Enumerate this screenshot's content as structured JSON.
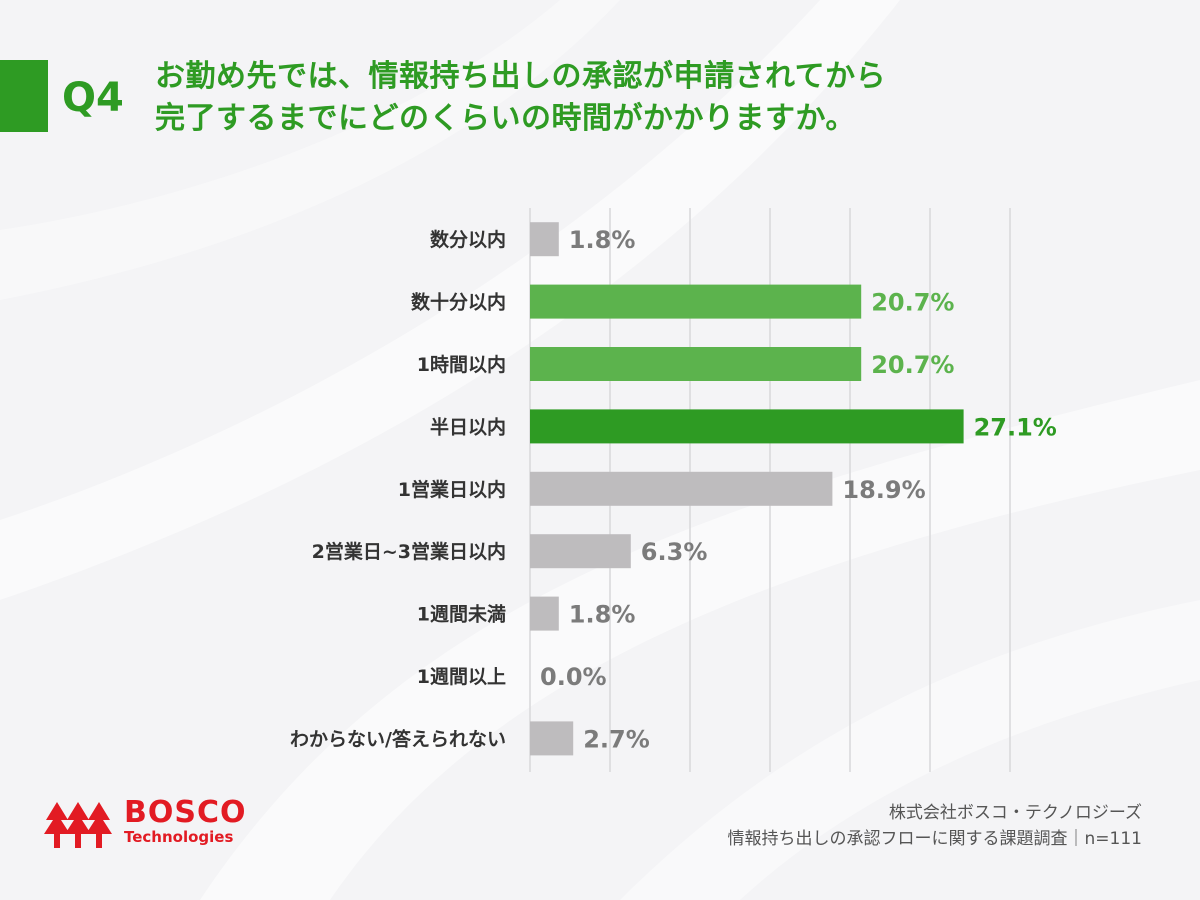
{
  "header": {
    "question_label": "Q4",
    "title_lines": [
      "お勤め先では、情報持ち出しの承認が申請されてから",
      "完了するまでにどのくらいの時間がかかりますか。"
    ]
  },
  "chart_data": {
    "type": "bar",
    "orientation": "horizontal",
    "categories": [
      "数分以内",
      "数十分以内",
      "1時間以内",
      "半日以内",
      "1営業日以内",
      "2営業日~3営業日以内",
      "1週間未満",
      "1週間以上",
      "わからない/答えられない"
    ],
    "values": [
      1.8,
      20.7,
      20.7,
      27.1,
      18.9,
      6.3,
      1.8,
      0.0,
      2.7
    ],
    "value_labels": [
      "1.8%",
      "20.7%",
      "20.7%",
      "27.1%",
      "18.9%",
      "6.3%",
      "1.8%",
      "0.0%",
      "2.7%"
    ],
    "value_unit": "%",
    "xlim": [
      0,
      30
    ],
    "grid": true,
    "colors": {
      "highlight": "#2e9b23",
      "accent": "#5cb34d",
      "neutral": "#bebcbe",
      "label_highlight": "#2e9b23",
      "label_accent": "#5cb34d",
      "label_neutral": "#7b7b7b"
    },
    "bar_styles": [
      "neutral",
      "accent",
      "accent",
      "highlight",
      "neutral",
      "neutral",
      "neutral",
      "neutral",
      "neutral"
    ]
  },
  "footer": {
    "logo_name": "BOSCO",
    "logo_sub": "Technologies",
    "source_lines": [
      "株式会社ボスコ・テクノロジーズ",
      "情報持ち出しの承認フローに関する課題調査｜n=111"
    ]
  }
}
